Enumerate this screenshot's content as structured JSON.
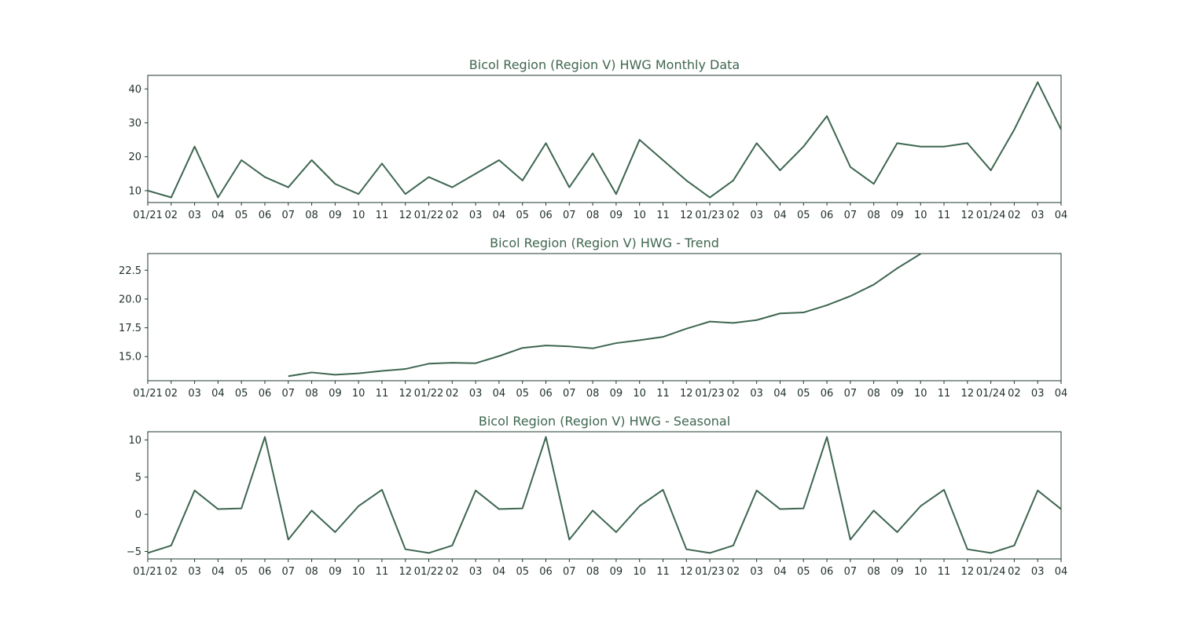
{
  "chart_data": [
    {
      "type": "line",
      "title": "Bicol Region (Region V) HWG Monthly Data",
      "xlabel": "",
      "ylabel": "",
      "x_tick_labels": [
        "01/21",
        "02",
        "03",
        "04",
        "05",
        "06",
        "07",
        "08",
        "09",
        "10",
        "11",
        "12",
        "01/22",
        "02",
        "03",
        "04",
        "05",
        "06",
        "07",
        "08",
        "09",
        "10",
        "11",
        "12",
        "01/23",
        "02",
        "03",
        "04",
        "05",
        "06",
        "07",
        "08",
        "09",
        "10",
        "11",
        "12",
        "01/24",
        "02",
        "03",
        "04"
      ],
      "y_ticks": [
        "10",
        "20",
        "30",
        "40"
      ],
      "ylim": [
        6.5,
        44
      ],
      "grid": false,
      "series": [
        {
          "values": [
            10,
            8,
            23,
            8,
            19,
            14,
            11,
            19,
            12,
            9,
            18,
            9,
            14,
            11,
            15,
            19,
            13,
            24,
            11,
            21,
            9,
            25,
            19,
            13,
            8,
            13,
            24,
            16,
            23,
            32,
            17,
            12,
            24,
            23,
            23,
            24,
            16,
            28,
            42,
            28
          ]
        }
      ]
    },
    {
      "type": "line",
      "title": "Bicol Region (Region V) HWG - Trend",
      "xlabel": "",
      "ylabel": "",
      "x_tick_labels": [
        "01/21",
        "02",
        "03",
        "04",
        "05",
        "06",
        "07",
        "08",
        "09",
        "10",
        "11",
        "12",
        "01/22",
        "02",
        "03",
        "04",
        "05",
        "06",
        "07",
        "08",
        "09",
        "10",
        "11",
        "12",
        "01/23",
        "02",
        "03",
        "04",
        "05",
        "06",
        "07",
        "08",
        "09",
        "10",
        "11",
        "12",
        "01/24",
        "02",
        "03",
        "04"
      ],
      "y_ticks": [
        "15.0",
        "17.5",
        "20.0",
        "22.5"
      ],
      "ylim": [
        12.9,
        23.95
      ],
      "grid": false,
      "series": [
        {
          "values": [
            null,
            null,
            null,
            null,
            null,
            null,
            13.29,
            13.62,
            13.42,
            13.54,
            13.75,
            13.92,
            14.38,
            14.46,
            14.42,
            15.04,
            15.75,
            15.96,
            15.88,
            15.71,
            16.17,
            16.42,
            16.71,
            17.42,
            18.04,
            17.92,
            18.17,
            18.75,
            18.83,
            19.46,
            20.25,
            21.25,
            22.67,
            23.92,
            null,
            null,
            null,
            null,
            null,
            null
          ]
        }
      ]
    },
    {
      "type": "line",
      "title": "Bicol Region (Region V) HWG - Seasonal",
      "xlabel": "",
      "ylabel": "",
      "x_tick_labels": [
        "01/21",
        "02",
        "03",
        "04",
        "05",
        "06",
        "07",
        "08",
        "09",
        "10",
        "11",
        "12",
        "01/22",
        "02",
        "03",
        "04",
        "05",
        "06",
        "07",
        "08",
        "09",
        "10",
        "11",
        "12",
        "01/23",
        "02",
        "03",
        "04",
        "05",
        "06",
        "07",
        "08",
        "09",
        "10",
        "11",
        "12",
        "01/24",
        "02",
        "03",
        "04"
      ],
      "y_ticks": [
        "−5",
        "0",
        "5",
        "10"
      ],
      "ylim": [
        -6,
        11.1
      ],
      "grid": false,
      "series": [
        {
          "values": [
            -5.2,
            -4.2,
            3.2,
            0.7,
            0.8,
            10.4,
            -3.4,
            0.5,
            -2.4,
            1.1,
            3.3,
            -4.7,
            -5.2,
            -4.2,
            3.2,
            0.7,
            0.8,
            10.4,
            -3.4,
            0.5,
            -2.4,
            1.1,
            3.3,
            -4.7,
            -5.2,
            -4.2,
            3.2,
            0.7,
            0.8,
            10.4,
            -3.4,
            0.5,
            -2.4,
            1.1,
            3.3,
            -4.7,
            -5.2,
            -4.2,
            3.2,
            0.7
          ]
        }
      ]
    }
  ]
}
